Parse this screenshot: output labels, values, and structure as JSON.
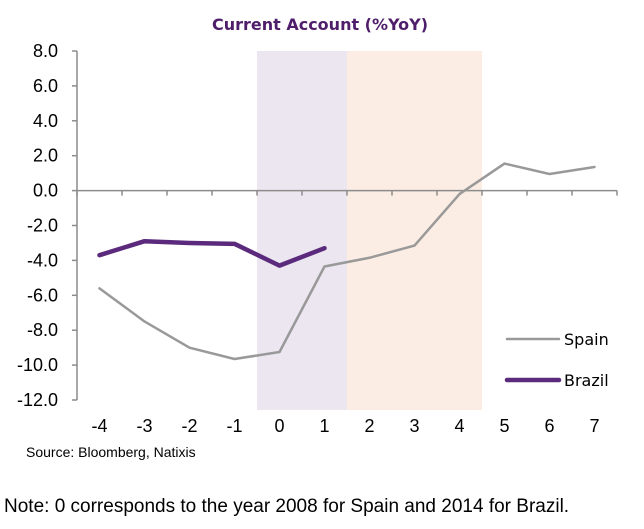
{
  "chart_data": {
    "type": "line",
    "title": "Current Account (%YoY)",
    "xlabel": "",
    "ylabel": "",
    "x": [
      -4,
      -3,
      -2,
      -1,
      0,
      1,
      2,
      3,
      4,
      5,
      6,
      7
    ],
    "x_tick_labels": [
      "-4",
      "-3",
      "-2",
      "-1",
      "0",
      "1",
      "2",
      "3",
      "4",
      "5",
      "6",
      "7"
    ],
    "ylim": [
      -12,
      8
    ],
    "y_ticks": [
      8,
      6,
      4,
      2,
      0,
      -2,
      -4,
      -6,
      -8,
      -10,
      -12
    ],
    "y_tick_labels": [
      "8.0",
      "6.0",
      "4.0",
      "2.0",
      "0.0",
      "-2.0",
      "-4.0",
      "-6.0",
      "-8.0",
      "-10.0",
      "-12.0"
    ],
    "grid": false,
    "legend_position": "bottom-right",
    "shaded_regions": [
      {
        "x_from": -0.5,
        "x_to": 1.5,
        "color": "#ebe6f0"
      },
      {
        "x_from": 1.5,
        "x_to": 4.5,
        "color": "#fbede3"
      }
    ],
    "series": [
      {
        "name": "Spain",
        "color": "#999999",
        "x": [
          -4,
          -3,
          -2,
          -1,
          0,
          1,
          2,
          3,
          4,
          5,
          6,
          7
        ],
        "values": [
          -5.6,
          -7.5,
          -9.0,
          -9.65,
          -9.25,
          -4.35,
          -3.85,
          -3.15,
          -0.2,
          1.55,
          0.95,
          1.35
        ]
      },
      {
        "name": "Brazil",
        "color": "#5b2a7d",
        "x": [
          -4,
          -3,
          -2,
          -1,
          0,
          1
        ],
        "values": [
          -3.7,
          -2.9,
          -3.0,
          -3.05,
          -4.3,
          -3.3
        ]
      }
    ]
  },
  "footer": {
    "source": "Source: Bloomberg, Natixis",
    "note": "Note: 0 corresponds to the year 2008 for Spain and 2014 for Brazil."
  }
}
